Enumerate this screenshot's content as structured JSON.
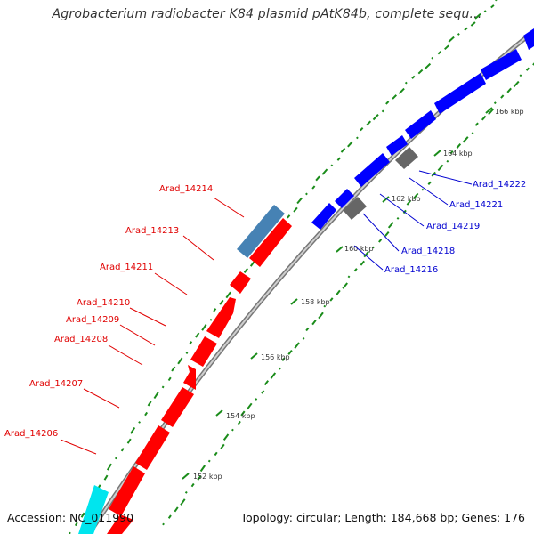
{
  "title": "Agrobacterium radiobacter K84 plasmid pAtK84b, complete sequ...",
  "accession": "Accession: NC_011990",
  "summary": "Topology: circular; Length: 184,668 bp; Genes: 176",
  "colors": {
    "forward_gene": "#ff0000",
    "reverse_gene": "#0000ff",
    "steelblue_feature": "#4682b4",
    "cyan_feature": "#00e5ee",
    "gray_feature": "#666666",
    "backbone": "#999999",
    "gc_dots": "#1a8c1a"
  },
  "scale_labels": [
    "152 kbp",
    "154 kbp",
    "156 kbp",
    "158 kbp",
    "160 kbp",
    "162 kbp",
    "164 kbp",
    "166 kbp"
  ],
  "gene_labels_left": [
    "Arad_14214",
    "Arad_14213",
    "Arad_14211",
    "Arad_14210",
    "Arad_14209",
    "Arad_14208",
    "Arad_14207",
    "Arad_14206"
  ],
  "gene_labels_right": [
    "Arad_14222",
    "Arad_14221",
    "Arad_14219",
    "Arad_14218",
    "Arad_14216"
  ]
}
